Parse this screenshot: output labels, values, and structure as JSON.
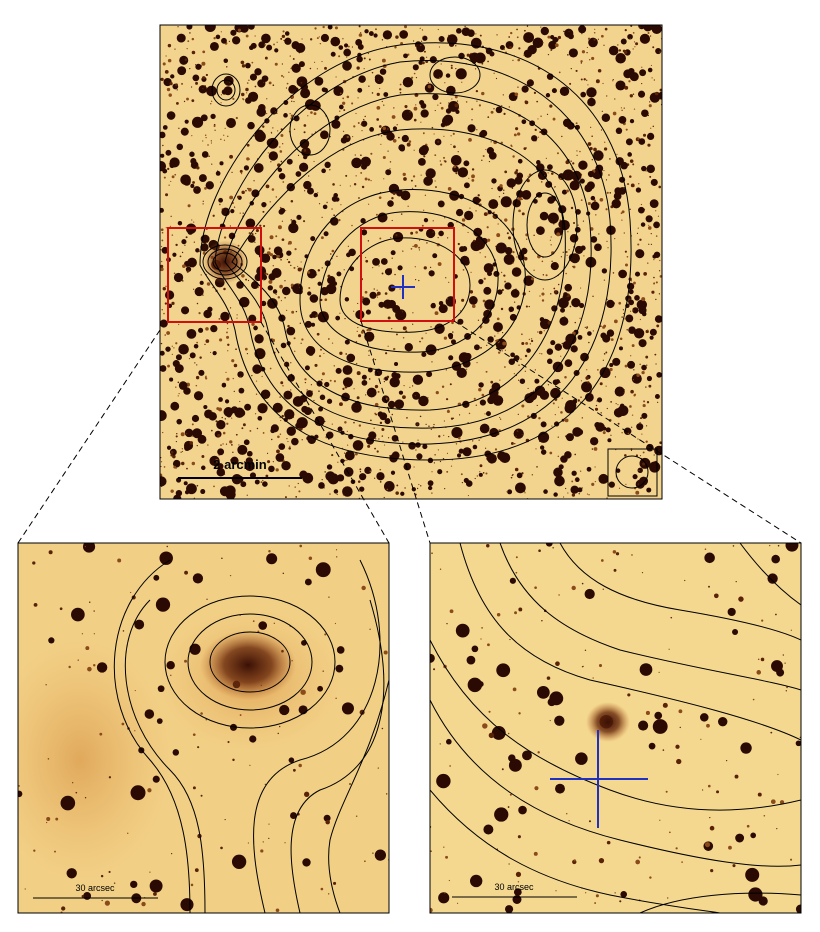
{
  "panels": [
    {
      "scale_label": "2 arcmin"
    },
    {
      "scale_label": "30 arcsec"
    },
    {
      "scale_label": "30 arcsec"
    }
  ]
}
